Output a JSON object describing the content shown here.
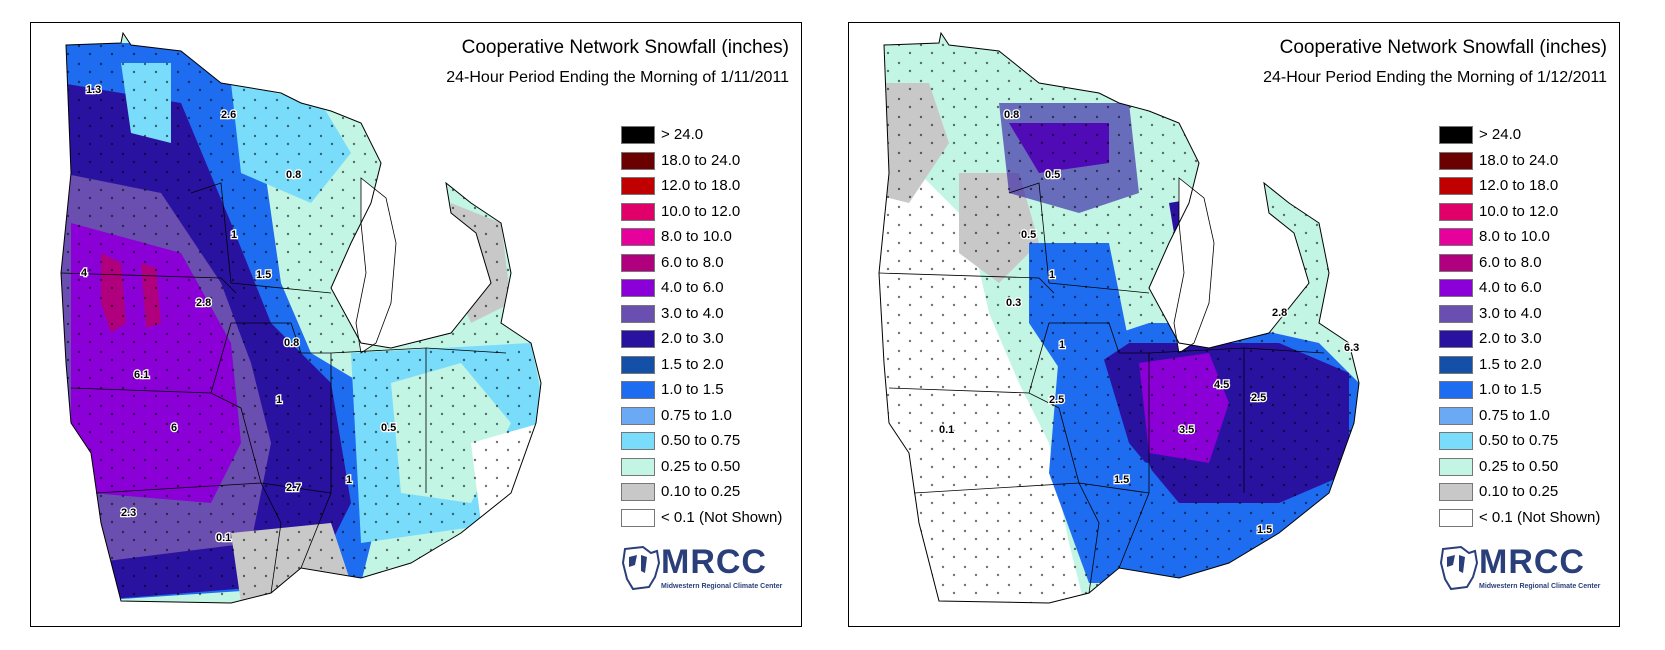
{
  "panels": [
    {
      "title": "Cooperative Network Snowfall (inches)",
      "subtitle": "24-Hour Period Ending the Morning of 1/11/2011",
      "labels": [
        {
          "text": "1.3",
          "pos": "nw-minnesota"
        },
        {
          "text": "2.6",
          "pos": "ne-minnesota"
        },
        {
          "text": "0.8",
          "pos": "n-wisconsin"
        },
        {
          "text": "1",
          "pos": "c-wisconsin"
        },
        {
          "text": "4",
          "pos": "e-nebraska"
        },
        {
          "text": "1.5",
          "pos": "s-wisconsin"
        },
        {
          "text": "2.8",
          "pos": "e-iowa"
        },
        {
          "text": "0.8",
          "pos": "n-illinois"
        },
        {
          "text": "6.1",
          "pos": "e-kansas"
        },
        {
          "text": "1",
          "pos": "c-illinois"
        },
        {
          "text": "0.5",
          "pos": "indiana"
        },
        {
          "text": "6",
          "pos": "missouri"
        },
        {
          "text": "2.7",
          "pos": "s-illinois"
        },
        {
          "text": "1",
          "pos": "kentucky"
        },
        {
          "text": "2.3",
          "pos": "s-missouri"
        },
        {
          "text": "0.1",
          "pos": "arkansas"
        }
      ]
    },
    {
      "title": "Cooperative Network Snowfall (inches)",
      "subtitle": "24-Hour Period Ending the Morning of 1/12/2011",
      "labels": [
        {
          "text": "0.8",
          "pos": "ne-minnesota"
        },
        {
          "text": "0.5",
          "pos": "upper-peninsula"
        },
        {
          "text": "0.5",
          "pos": "n-wisconsin"
        },
        {
          "text": "1",
          "pos": "c-wisconsin"
        },
        {
          "text": "0.3",
          "pos": "iowa"
        },
        {
          "text": "1",
          "pos": "n-illinois"
        },
        {
          "text": "2.8",
          "pos": "e-michigan"
        },
        {
          "text": "6.3",
          "pos": "ohio"
        },
        {
          "text": "4.5",
          "pos": "indiana"
        },
        {
          "text": "2.5",
          "pos": "c-illinois"
        },
        {
          "text": "2.5",
          "pos": "w-ohio"
        },
        {
          "text": "3.5",
          "pos": "s-indiana"
        },
        {
          "text": "0.1",
          "pos": "missouri"
        },
        {
          "text": "1.5",
          "pos": "kentucky"
        },
        {
          "text": "1.5",
          "pos": "e-kentucky"
        }
      ]
    }
  ],
  "legend": [
    {
      "label": "> 24.0",
      "color": "#000000"
    },
    {
      "label": "18.0 to 24.0",
      "color": "#6b0000"
    },
    {
      "label": "12.0 to 18.0",
      "color": "#c00000"
    },
    {
      "label": "10.0 to 12.0",
      "color": "#e0006a"
    },
    {
      "label": "8.0 to 10.0",
      "color": "#e6009c"
    },
    {
      "label": "6.0 to 8.0",
      "color": "#b0007e"
    },
    {
      "label": "4.0 to 6.0",
      "color": "#8a00d6"
    },
    {
      "label": "3.0 to 4.0",
      "color": "#6a4fb0"
    },
    {
      "label": "2.0 to 3.0",
      "color": "#2a12a0"
    },
    {
      "label": "1.5 to 2.0",
      "color": "#1450a8"
    },
    {
      "label": "1.0 to 1.5",
      "color": "#1e6cf0"
    },
    {
      "label": "0.75 to 1.0",
      "color": "#6aaaf5"
    },
    {
      "label": "0.50 to 0.75",
      "color": "#78dcfa"
    },
    {
      "label": "0.25 to 0.50",
      "color": "#c2f5e4"
    },
    {
      "label": "0.10 to 0.25",
      "color": "#c8c8c8"
    },
    {
      "label": "< 0.1 (Not Shown)",
      "color": "#ffffff"
    }
  ],
  "logo": {
    "name": "MRCC",
    "subtitle": "Midwestern Regional Climate Center"
  }
}
